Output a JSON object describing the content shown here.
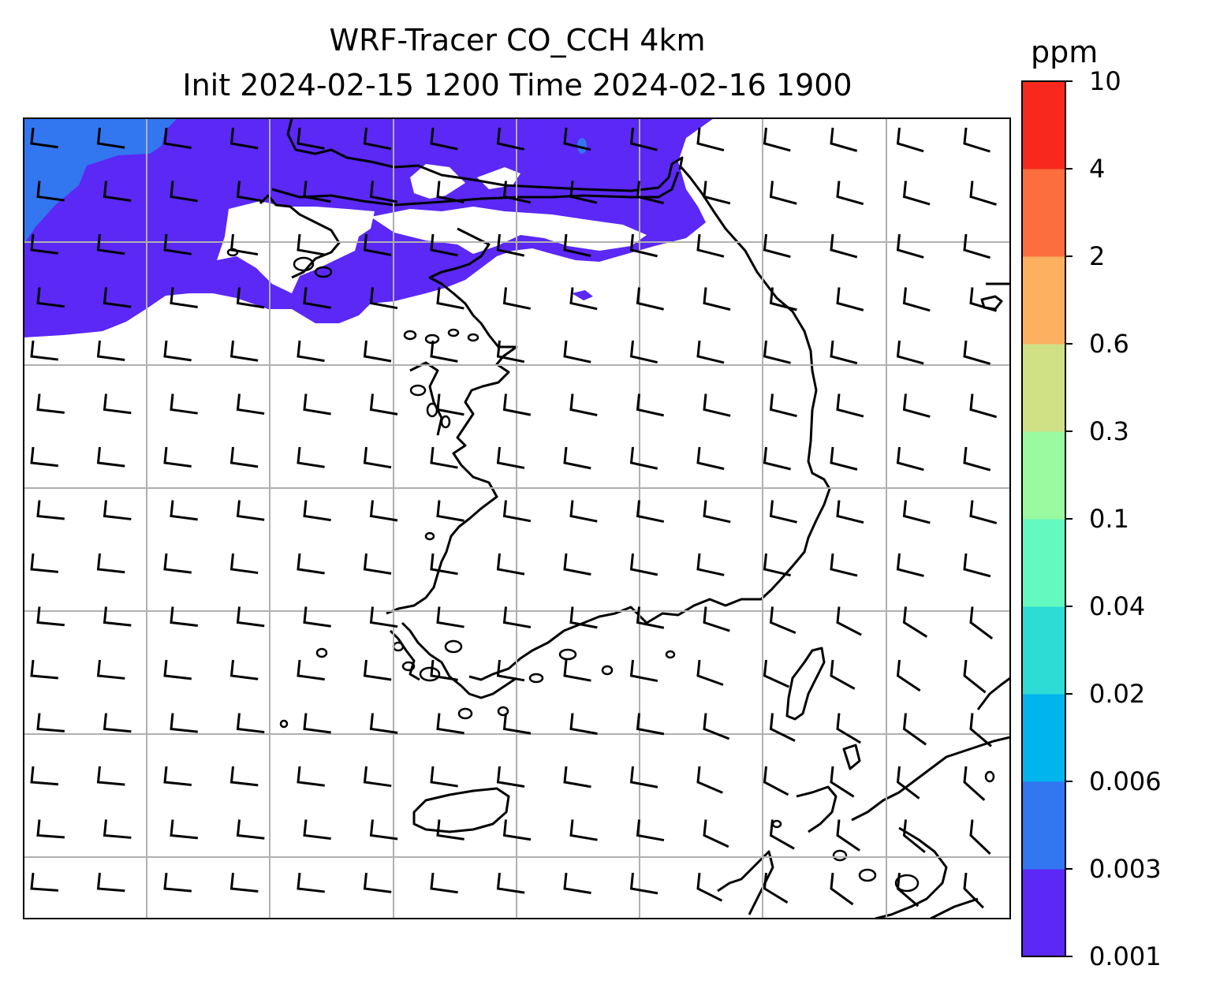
{
  "title": {
    "line1": "WRF-Tracer CO_CCH 4km",
    "line2": "Init 2024-02-15 1200 Time 2024-02-16 1900"
  },
  "colorbar": {
    "unit": "ppm",
    "levels": [
      "0.001",
      "0.003",
      "0.006",
      "0.02",
      "0.04",
      "0.1",
      "0.3",
      "0.6",
      "2",
      "4",
      "10"
    ],
    "colors": [
      "#5b28f5",
      "#3276f0",
      "#00b4ee",
      "#2edcd6",
      "#64fabf",
      "#9afaa0",
      "#d0e085",
      "#fcb060",
      "#fc6e3e",
      "#f8281c"
    ]
  },
  "map": {
    "gridline_color": "#b0b0b0",
    "coastline_color": "#000000",
    "low_concentration_fill": "#5b28f5",
    "edge_concentration_fill": "#3276f0",
    "wind_barbs": "westerly winds, turning west-northwesterly in the southeast"
  }
}
